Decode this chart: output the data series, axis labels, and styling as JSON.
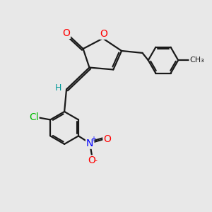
{
  "background_color": "#e8e8e8",
  "bond_color": "#1a1a1a",
  "atom_colors": {
    "O": "#ff0000",
    "Cl": "#00bb00",
    "N": "#0000ff",
    "H": "#009999",
    "C": "#1a1a1a"
  },
  "figsize": [
    3.0,
    3.0
  ],
  "dpi": 100
}
